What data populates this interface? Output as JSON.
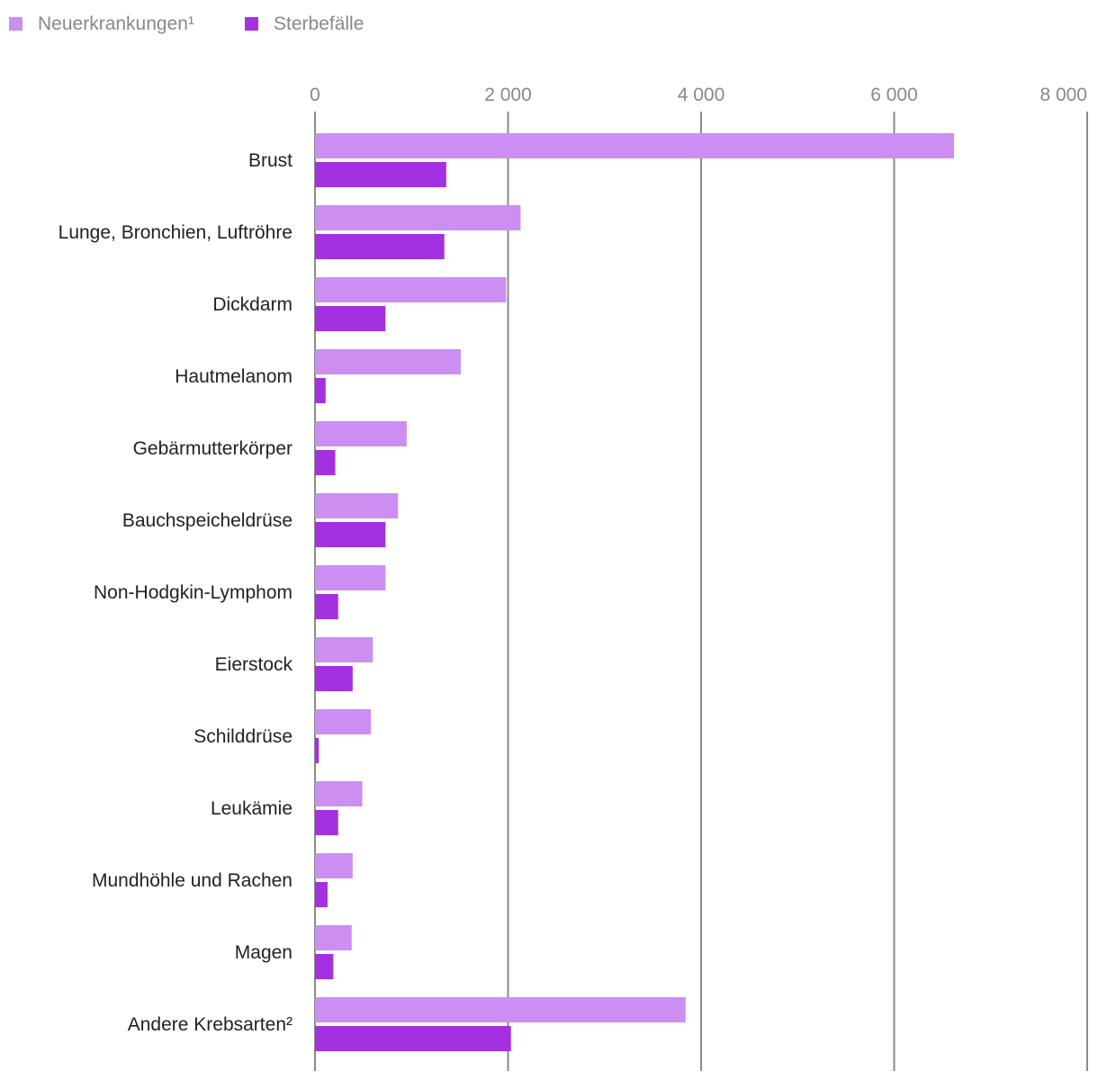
{
  "chart_data": {
    "type": "bar",
    "orientation": "horizontal",
    "categories": [
      "Brust",
      "Lunge, Bronchien, Luftröhre",
      "Dickdarm",
      "Hautmelanom",
      "Gebärmutterkörper",
      "Bauchspeicheldrüse",
      "Non-Hodgkin-Lymphom",
      "Eierstock",
      "Schilddrüse",
      "Leukämie",
      "Mundhöhle und Rachen",
      "Magen",
      "Andere Krebsarten²"
    ],
    "series": [
      {
        "name": "Neuerkrankungen¹",
        "color": "#cc8ef0",
        "values": [
          6620,
          2130,
          1980,
          1510,
          950,
          860,
          730,
          600,
          580,
          490,
          390,
          380,
          3840
        ]
      },
      {
        "name": "Sterbefälle",
        "color": "#a331e2",
        "values": [
          1360,
          1340,
          730,
          110,
          210,
          730,
          240,
          390,
          40,
          240,
          130,
          190,
          2030
        ]
      }
    ],
    "xlim": [
      0,
      8000
    ],
    "xticks": [
      0,
      2000,
      4000,
      6000,
      8000
    ],
    "xtick_labels": [
      "0",
      "2 000",
      "4 000",
      "6 000",
      "8 000"
    ],
    "grid": true,
    "legend_position": "top-left",
    "title": "",
    "xlabel": "",
    "ylabel": ""
  }
}
